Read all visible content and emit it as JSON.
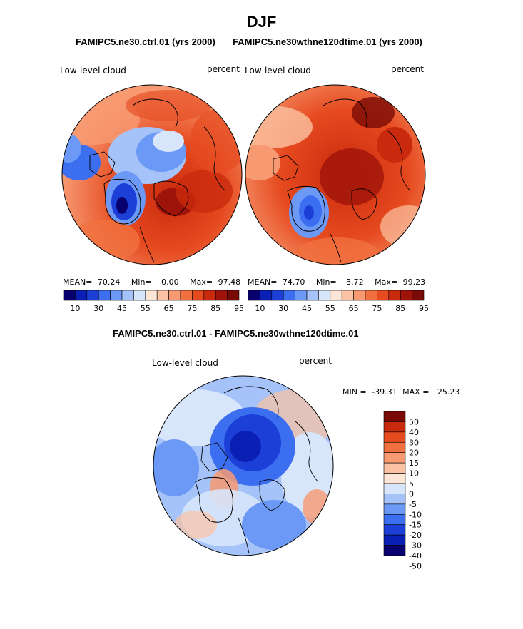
{
  "page_title": "DJF",
  "top_subtitle_left": "FAMIPC5.ne30.ctrl.01 (yrs 2000)",
  "top_subtitle_right": "FAMIPC5.ne30wthne120dtime.01 (yrs 2000)",
  "diff_subtitle": "FAMIPC5.ne30.ctrl.01 - FAMIPC5.ne30wthne120dtime.01",
  "colors": {
    "abs_scale": [
      "#08006e",
      "#0a1fb4",
      "#1b3fd7",
      "#3b6ff0",
      "#6b99f5",
      "#a5c3f8",
      "#d7e6fb",
      "#fde6d5",
      "#fbc3a3",
      "#f79a72",
      "#f1703f",
      "#e64a1f",
      "#c92a0e",
      "#9f140a",
      "#7a0a05"
    ],
    "diff_scale": [
      "#08006e",
      "#0a1fb4",
      "#1b3fd7",
      "#3b6ff0",
      "#6b99f5",
      "#a5c3f8",
      "#d7e6fb",
      "#fde6d5",
      "#fbc3a3",
      "#f79a72",
      "#f1703f",
      "#e64a1f",
      "#c92a0e",
      "#7a0a05"
    ]
  },
  "chart_data": [
    {
      "type": "heatmap",
      "projection": "north-polar-stereographic",
      "case": "FAMIPC5.ne30.ctrl.01 (yrs 2000)",
      "variable_label": "Low-level cloud",
      "units_label": "percent",
      "stats": {
        "mean_label": "MEAN=",
        "mean": "70.24",
        "min_label": "Min=",
        "min": "0.00",
        "max_label": "Max=",
        "max": "97.48"
      },
      "colorbar": {
        "orientation": "horizontal",
        "tick_labels": [
          "10",
          "30",
          "45",
          "55",
          "65",
          "75",
          "85",
          "95"
        ]
      }
    },
    {
      "type": "heatmap",
      "projection": "north-polar-stereographic",
      "case": "FAMIPC5.ne30wthne120dtime.01 (yrs 2000)",
      "variable_label": "Low-level cloud",
      "units_label": "percent",
      "stats": {
        "mean_label": "MEAN=",
        "mean": "74.70",
        "min_label": "Min=",
        "min": "3.72",
        "max_label": "Max=",
        "max": "99.23"
      },
      "colorbar": {
        "orientation": "horizontal",
        "tick_labels": [
          "10",
          "30",
          "45",
          "55",
          "65",
          "75",
          "85",
          "95"
        ]
      }
    },
    {
      "type": "heatmap",
      "projection": "north-polar-stereographic",
      "case": "FAMIPC5.ne30.ctrl.01 - FAMIPC5.ne30wthne120dtime.01",
      "variable_label": "Low-level cloud",
      "units_label": "percent",
      "stats": {
        "min_label": "MIN =",
        "min": "-39.31",
        "max_label": "MAX =",
        "max": "25.23"
      },
      "colorbar": {
        "orientation": "vertical",
        "tick_labels": [
          "50",
          "40",
          "30",
          "20",
          "15",
          "10",
          "5",
          "0",
          "-5",
          "-10",
          "-15",
          "-20",
          "-30",
          "-40",
          "-50"
        ]
      }
    }
  ]
}
